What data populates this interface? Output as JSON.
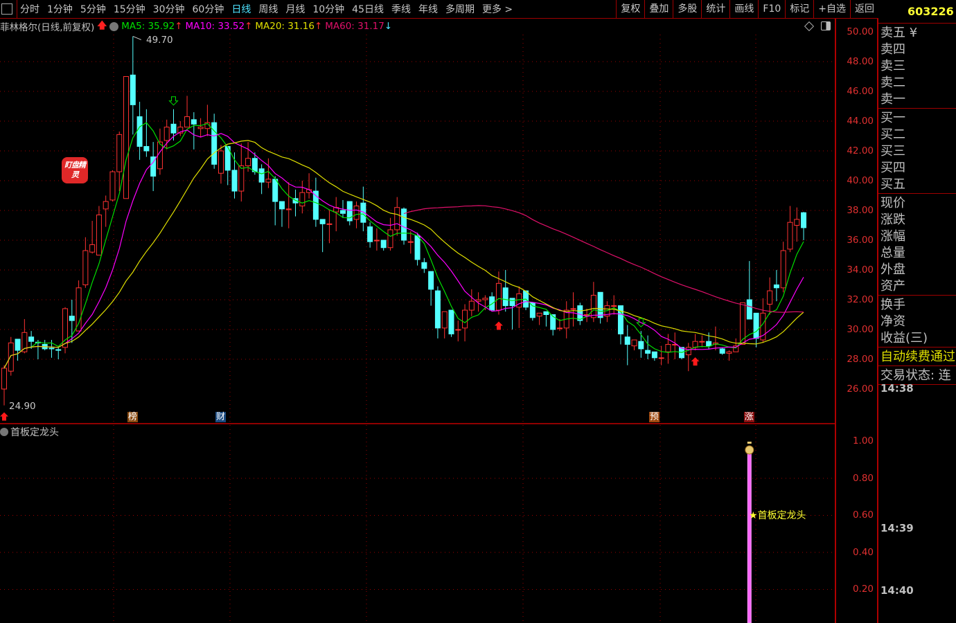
{
  "toolbar": {
    "tabs": [
      "分时",
      "1分钟",
      "5分钟",
      "15分钟",
      "30分钟",
      "60分钟",
      "日线",
      "周线",
      "月线",
      "10分钟",
      "45日线",
      "季线",
      "年线",
      "多周期",
      "更多 >"
    ],
    "active_tab": "日线",
    "buttons": [
      "复权",
      "叠加",
      "多股",
      "统计",
      "画线",
      "F10",
      "标记",
      "+自选",
      "返回"
    ]
  },
  "header": {
    "title": "菲林格尔(日线,前复权)",
    "ma5": "MA5: 35.92",
    "ma10": "MA10: 33.52",
    "ma20": "MA20: 31.16",
    "ma60": "MA60: 31.17",
    "ma5_dir": "↑",
    "ma10_dir": "↑",
    "ma20_dir": "↑",
    "ma60_dir": "↓"
  },
  "colors": {
    "up": "#ff3232",
    "down": "#54ffff",
    "ma5": "#00e000",
    "ma10": "#ff00ff",
    "ma20": "#e0e000",
    "ma60": "#e0106a",
    "axis": "#e03030",
    "grid": "#a00000"
  },
  "right_panel": {
    "code": "603226",
    "sell": [
      "卖五 ¥",
      "卖四",
      "卖三",
      "卖二",
      "卖一"
    ],
    "buy": [
      "买一",
      "买二",
      "买三",
      "买四",
      "买五"
    ],
    "quote": [
      "现价",
      "涨跌",
      "涨幅",
      "总量",
      "外盘",
      "资产"
    ],
    "fund": [
      "换手",
      "净资",
      "收益(三)"
    ],
    "notice": "自动续费通过",
    "status": "交易状态: 连",
    "times": [
      "14:38",
      "14:39",
      "14:40"
    ]
  },
  "annotations": {
    "high": "49.70",
    "low": "24.90",
    "logo": "盯盘精灵",
    "markers": [
      "榜",
      "财",
      "预",
      "涨"
    ]
  },
  "indicator": {
    "name": "首板定龙头",
    "signal_label": "★首板定龙头",
    "signal_index": 110,
    "signal_value": 1.0
  },
  "chart_data": {
    "type": "candlestick",
    "price_ticks": [
      "50.00",
      "48.00",
      "46.00",
      "44.00",
      "42.00",
      "40.00",
      "38.00",
      "36.00",
      "34.00",
      "32.00",
      "30.00",
      "28.00",
      "26.00"
    ],
    "ylim": [
      26,
      50
    ],
    "indicator_ticks": [
      "1.00",
      "0.80",
      "0.60",
      "0.40",
      "0.20"
    ],
    "ma_periods": [
      5,
      10,
      20,
      60
    ],
    "buy_arrows": [
      0,
      73,
      102
    ],
    "sell_arrows": [
      25,
      94
    ],
    "event_marks": [
      {
        "label": "榜",
        "index": 19
      },
      {
        "label": "财",
        "index": 32
      },
      {
        "label": "预",
        "index": 96
      },
      {
        "label": "涨",
        "index": 110
      }
    ],
    "ohlc": [
      [
        26.0,
        27.6,
        24.9,
        27.4
      ],
      [
        27.2,
        29.5,
        26.9,
        29.1
      ],
      [
        29.35,
        29.35,
        27.9,
        28.6
      ],
      [
        28.5,
        30.7,
        28.4,
        29.8
      ],
      [
        29.5,
        29.9,
        28.7,
        29.2
      ],
      [
        29.15,
        29.3,
        28.0,
        29.1
      ],
      [
        29.0,
        29.3,
        28.6,
        28.7
      ],
      [
        28.75,
        29.3,
        28.1,
        28.7
      ],
      [
        28.65,
        28.8,
        28.0,
        28.6
      ],
      [
        28.8,
        31.5,
        28.4,
        31.4
      ],
      [
        30.9,
        32.0,
        29.1,
        30.6
      ],
      [
        29.9,
        33.3,
        29.9,
        32.8
      ],
      [
        33.0,
        36.2,
        32.8,
        35.3
      ],
      [
        35.2,
        37.3,
        35.1,
        35.7
      ],
      [
        35.0,
        38.3,
        35.0,
        37.7
      ],
      [
        38.1,
        39.0,
        36.9,
        38.6
      ],
      [
        38.7,
        40.7,
        38.6,
        40.6
      ],
      [
        40.6,
        43.3,
        39.3,
        43.1
      ],
      [
        38.8,
        47.0,
        38.8,
        47.0
      ],
      [
        47.1,
        49.7,
        43.1,
        45.1
      ],
      [
        44.3,
        45.3,
        41.4,
        42.3
      ],
      [
        42.3,
        44.8,
        41.6,
        42.0
      ],
      [
        41.6,
        42.6,
        39.3,
        40.3
      ],
      [
        40.8,
        43.5,
        40.4,
        42.6
      ],
      [
        42.7,
        44.1,
        42.1,
        43.6
      ],
      [
        43.8,
        44.8,
        42.7,
        43.2
      ],
      [
        43.2,
        44.0,
        43.0,
        43.6
      ],
      [
        43.6,
        45.7,
        43.6,
        44.3
      ],
      [
        44.1,
        44.6,
        42.1,
        43.8
      ],
      [
        43.5,
        44.2,
        42.9,
        43.6
      ],
      [
        43.5,
        45.1,
        43.0,
        43.9
      ],
      [
        43.9,
        44.5,
        40.8,
        41.1
      ],
      [
        40.5,
        42.4,
        39.8,
        42.0
      ],
      [
        42.3,
        42.3,
        39.7,
        40.7
      ],
      [
        40.7,
        41.9,
        38.8,
        39.3
      ],
      [
        39.3,
        42.5,
        38.6,
        41.0
      ],
      [
        41.0,
        42.6,
        40.6,
        41.5
      ],
      [
        41.5,
        41.9,
        40.4,
        40.6
      ],
      [
        40.8,
        41.1,
        39.1,
        39.9
      ],
      [
        39.9,
        41.5,
        39.5,
        40.1
      ],
      [
        40.1,
        40.3,
        37.0,
        38.6
      ],
      [
        38.6,
        38.6,
        36.9,
        38.1
      ],
      [
        38.1,
        39.9,
        36.8,
        38.1
      ],
      [
        38.8,
        39.4,
        37.6,
        38.5
      ],
      [
        38.3,
        40.0,
        37.8,
        39.2
      ],
      [
        39.2,
        40.5,
        38.8,
        39.4
      ],
      [
        39.3,
        40.2,
        36.9,
        37.4
      ],
      [
        37.4,
        37.4,
        35.2,
        37.1
      ],
      [
        37.1,
        38.0,
        35.8,
        37.1
      ],
      [
        37.9,
        38.9,
        36.6,
        38.2
      ],
      [
        38.0,
        38.7,
        37.5,
        37.8
      ],
      [
        38.6,
        38.6,
        37.0,
        37.3
      ],
      [
        37.4,
        38.6,
        36.8,
        38.3
      ],
      [
        38.5,
        39.6,
        36.6,
        37.2
      ],
      [
        36.9,
        37.2,
        35.5,
        35.9
      ],
      [
        36.0,
        36.8,
        35.3,
        36.0
      ],
      [
        36.0,
        36.0,
        35.3,
        35.5
      ],
      [
        35.5,
        37.5,
        35.3,
        36.7
      ],
      [
        36.7,
        38.9,
        36.3,
        38.2
      ],
      [
        38.1,
        38.2,
        35.7,
        36.0
      ],
      [
        35.9,
        36.6,
        35.1,
        35.9
      ],
      [
        36.3,
        36.5,
        34.3,
        34.7
      ],
      [
        34.5,
        34.8,
        33.8,
        34.1
      ],
      [
        33.9,
        33.9,
        31.6,
        32.7
      ],
      [
        32.6,
        32.9,
        29.4,
        30.1
      ],
      [
        30.1,
        31.2,
        29.4,
        31.2
      ],
      [
        31.3,
        31.3,
        29.5,
        29.7
      ],
      [
        30.0,
        30.6,
        29.2,
        30.0
      ],
      [
        30.1,
        31.7,
        29.2,
        31.3
      ],
      [
        31.3,
        32.7,
        30.9,
        31.9
      ],
      [
        31.9,
        32.5,
        31.2,
        32.0
      ],
      [
        32.0,
        32.3,
        31.3,
        32.1
      ],
      [
        32.2,
        32.5,
        31.3,
        31.3
      ],
      [
        31.3,
        33.9,
        31.0,
        33.1
      ],
      [
        32.8,
        34.0,
        31.2,
        31.6
      ],
      [
        32.1,
        32.1,
        30.0,
        31.6
      ],
      [
        31.5,
        32.9,
        30.1,
        32.4
      ],
      [
        32.6,
        32.6,
        31.3,
        31.5
      ],
      [
        31.8,
        31.8,
        30.6,
        30.8
      ],
      [
        30.9,
        31.1,
        30.3,
        31.1
      ],
      [
        31.2,
        31.2,
        30.2,
        31.0
      ],
      [
        31.0,
        31.0,
        29.6,
        30.0
      ],
      [
        30.1,
        30.7,
        29.9,
        30.1
      ],
      [
        30.1,
        31.9,
        29.4,
        31.3
      ],
      [
        31.4,
        32.5,
        30.2,
        31.4
      ],
      [
        31.6,
        31.8,
        30.3,
        30.6
      ],
      [
        31.0,
        31.4,
        30.5,
        31.0
      ],
      [
        30.8,
        33.2,
        30.5,
        32.3
      ],
      [
        32.5,
        32.5,
        30.4,
        30.8
      ],
      [
        30.9,
        31.9,
        30.5,
        31.6
      ],
      [
        31.6,
        32.3,
        31.0,
        31.6
      ],
      [
        31.6,
        31.6,
        29.0,
        29.7
      ],
      [
        29.5,
        30.3,
        27.6,
        29.0
      ],
      [
        28.9,
        29.3,
        28.6,
        29.3
      ],
      [
        29.2,
        29.9,
        28.1,
        28.7
      ],
      [
        28.6,
        29.6,
        28.0,
        28.4
      ],
      [
        28.5,
        28.5,
        27.9,
        28.1
      ],
      [
        28.1,
        28.9,
        27.6,
        28.1
      ],
      [
        28.5,
        29.7,
        27.7,
        29.0
      ],
      [
        29.0,
        29.8,
        28.0,
        29.0
      ],
      [
        28.8,
        28.8,
        28.0,
        28.1
      ],
      [
        28.3,
        29.1,
        27.2,
        28.8
      ],
      [
        28.8,
        29.7,
        28.6,
        29.2
      ],
      [
        29.2,
        29.6,
        28.8,
        29.2
      ],
      [
        29.2,
        29.8,
        28.7,
        28.9
      ],
      [
        29.0,
        30.2,
        28.6,
        29.1
      ],
      [
        28.7,
        28.8,
        28.3,
        28.4
      ],
      [
        28.4,
        28.6,
        27.9,
        28.5
      ],
      [
        28.5,
        29.4,
        28.5,
        28.9
      ],
      [
        29.0,
        31.8,
        29.0,
        31.8
      ],
      [
        32.0,
        34.6,
        30.7,
        30.7
      ],
      [
        31.1,
        31.1,
        28.8,
        29.4
      ],
      [
        29.3,
        32.1,
        29.1,
        31.1
      ],
      [
        31.7,
        33.5,
        31.0,
        32.6
      ],
      [
        33.0,
        34.0,
        31.9,
        32.8
      ],
      [
        32.8,
        35.9,
        32.5,
        35.3
      ],
      [
        35.4,
        38.3,
        35.2,
        37.2
      ],
      [
        37.0,
        38.2,
        35.9,
        37.4
      ],
      [
        37.85,
        37.9,
        36.0,
        36.84
      ]
    ]
  }
}
